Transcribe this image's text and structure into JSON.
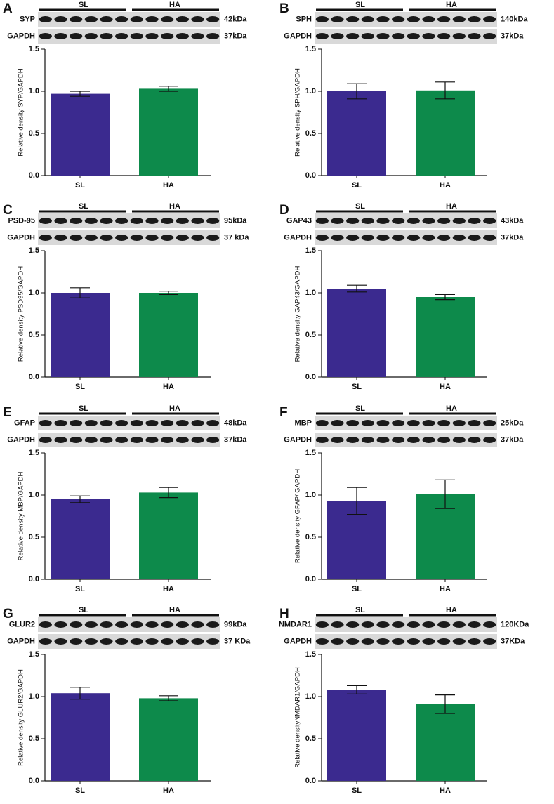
{
  "chart_data": [
    {
      "type": "bar",
      "panel_label": "A",
      "blot": {
        "target": "SYP",
        "target_kda": "42kDa",
        "loading": "GAPDH",
        "loading_kda": "37kDa"
      },
      "ylabel": "Relative density SYP/GAPDH",
      "categories": [
        "SL",
        "HA"
      ],
      "values": [
        0.97,
        1.03
      ],
      "errors": [
        0.03,
        0.03
      ],
      "colors": [
        "#3b2a8f",
        "#0d8a4b"
      ],
      "ylim": [
        0,
        1.5
      ],
      "yticks": [
        {
          "value": 0,
          "label": "0.0"
        },
        0.5,
        {
          "value": 1,
          "label": "1.0"
        },
        1.5
      ]
    },
    {
      "type": "bar",
      "panel_label": "B",
      "blot": {
        "target": "SPH",
        "target_kda": "140kDa",
        "loading": "GAPDH",
        "loading_kda": "37kDa"
      },
      "ylabel": "Relative density SPH/GAPDH",
      "categories": [
        "SL",
        "HA"
      ],
      "values": [
        1.0,
        1.01
      ],
      "errors": [
        0.09,
        0.1
      ],
      "colors": [
        "#3b2a8f",
        "#0d8a4b"
      ],
      "ylim": [
        0,
        1.5
      ],
      "yticks": [
        {
          "value": 0,
          "label": "0.0"
        },
        0.5,
        {
          "value": 1,
          "label": "1.0"
        },
        1.5
      ]
    },
    {
      "type": "bar",
      "panel_label": "C",
      "blot": {
        "target": "PSD-95",
        "target_kda": "95kDa",
        "loading": "GAPDH",
        "loading_kda": "37 kDa"
      },
      "ylabel": "Relative density PSD95/GAPDH",
      "categories": [
        "SL",
        "HA"
      ],
      "values": [
        1.0,
        1.0
      ],
      "errors": [
        0.06,
        0.02
      ],
      "colors": [
        "#3b2a8f",
        "#0d8a4b"
      ],
      "ylim": [
        0,
        1.5
      ],
      "yticks": [
        {
          "value": 0,
          "label": "0.0"
        },
        0.5,
        {
          "value": 1,
          "label": "1.0"
        },
        1.5
      ]
    },
    {
      "type": "bar",
      "panel_label": "D",
      "blot": {
        "target": "GAP43",
        "target_kda": "43kDa",
        "loading": "GAPDH",
        "loading_kda": "37kDa"
      },
      "ylabel": "Relative density GAP43/GAPDH",
      "categories": [
        "SL",
        "HA"
      ],
      "values": [
        1.05,
        0.95
      ],
      "errors": [
        0.04,
        0.03
      ],
      "colors": [
        "#3b2a8f",
        "#0d8a4b"
      ],
      "ylim": [
        0,
        1.5
      ],
      "yticks": [
        {
          "value": 0,
          "label": "0.0"
        },
        0.5,
        {
          "value": 1,
          "label": "1.0"
        },
        1.5
      ]
    },
    {
      "type": "bar",
      "panel_label": "E",
      "blot": {
        "target": "GFAP",
        "target_kda": "48kDa",
        "loading": "GAPDH",
        "loading_kda": "37kDa"
      },
      "ylabel": "Relative density MBP/GAPDH",
      "categories": [
        "SL",
        "HA"
      ],
      "values": [
        0.95,
        1.03
      ],
      "errors": [
        0.04,
        0.06
      ],
      "colors": [
        "#3b2a8f",
        "#0d8a4b"
      ],
      "ylim": [
        0,
        1.5
      ],
      "yticks": [
        {
          "value": 0,
          "label": "0.0"
        },
        0.5,
        {
          "value": 1,
          "label": "1.0"
        },
        1.5
      ]
    },
    {
      "type": "bar",
      "panel_label": "F",
      "blot": {
        "target": "MBP",
        "target_kda": "25kDa",
        "loading": "GAPDH",
        "loading_kda": "37kDa"
      },
      "ylabel": "Relative density GFAP/ GAPDH",
      "categories": [
        "SL",
        "HA"
      ],
      "values": [
        0.93,
        1.01
      ],
      "errors": [
        0.16,
        0.17
      ],
      "colors": [
        "#3b2a8f",
        "#0d8a4b"
      ],
      "ylim": [
        0,
        1.5
      ],
      "yticks": [
        {
          "value": 0,
          "label": "0.0"
        },
        0.5,
        {
          "value": 1,
          "label": "1.0"
        },
        1.5
      ]
    },
    {
      "type": "bar",
      "panel_label": "G",
      "blot": {
        "target": "GLUR2",
        "target_kda": "99kDa",
        "loading": "GAPDH",
        "loading_kda": "37 KDa"
      },
      "ylabel": "Relative density GLUR2/GAPDH",
      "categories": [
        "SL",
        "HA"
      ],
      "values": [
        1.04,
        0.98
      ],
      "errors": [
        0.07,
        0.03
      ],
      "colors": [
        "#3b2a8f",
        "#0d8a4b"
      ],
      "ylim": [
        0,
        1.5
      ],
      "yticks": [
        {
          "value": 0,
          "label": "0.0"
        },
        0.5,
        {
          "value": 1,
          "label": "1.0"
        },
        1.5
      ]
    },
    {
      "type": "bar",
      "panel_label": "H",
      "blot": {
        "target": "NMDAR1",
        "target_kda": "120KDa",
        "loading": "GAPDH",
        "loading_kda": "37KDa"
      },
      "ylabel": "Relative densityNMDAR1/GAPDH",
      "categories": [
        "SL",
        "HA"
      ],
      "values": [
        1.08,
        0.91
      ],
      "errors": [
        0.05,
        0.11
      ],
      "colors": [
        "#3b2a8f",
        "#0d8a4b"
      ],
      "ylim": [
        0,
        1.5
      ],
      "yticks": [
        {
          "value": 0,
          "label": "0.0"
        },
        0.5,
        {
          "value": 1,
          "label": "1.0"
        },
        1.5
      ]
    }
  ]
}
